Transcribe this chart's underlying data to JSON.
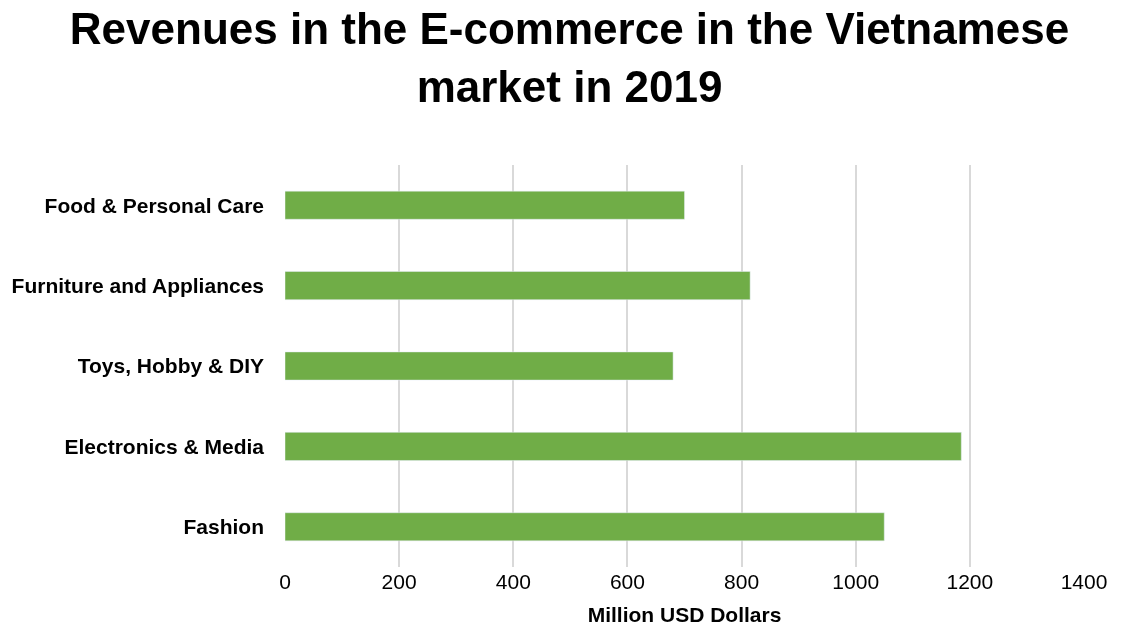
{
  "chart_data": {
    "type": "bar",
    "orientation": "horizontal",
    "title": "Revenues in the E-commerce in the Vietnamese market in 2019",
    "xlabel": "Million USD Dollars",
    "categories": [
      "Food & Personal Care",
      "Furniture and Appliances",
      "Toys, Hobby & DIY",
      "Electronics & Media",
      "Fashion"
    ],
    "values": [
      700,
      815,
      680,
      1185,
      1050
    ],
    "color": "#70ad47",
    "xlim": [
      0,
      1400
    ],
    "xticks": [
      0,
      200,
      400,
      600,
      800,
      1000,
      1200,
      1400
    ],
    "grid": "x"
  }
}
